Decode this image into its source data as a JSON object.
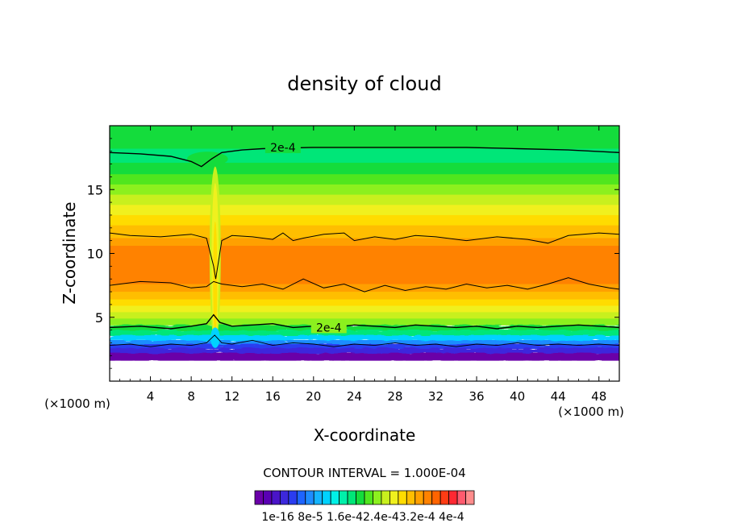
{
  "chart_data": {
    "type": "contour",
    "title": "density of cloud",
    "xlabel": "X-coordinate",
    "ylabel": "Z-coordinate",
    "x_unit_left": "(×1000 m)",
    "x_unit_right": "(×1000 m)",
    "xlim": [
      0,
      50
    ],
    "ylim": [
      0,
      20
    ],
    "xticks": [
      "4",
      "8",
      "12",
      "16",
      "20",
      "24",
      "28",
      "32",
      "36",
      "40",
      "44",
      "48"
    ],
    "xtick_values": [
      4,
      8,
      12,
      16,
      20,
      24,
      28,
      32,
      36,
      40,
      44,
      48
    ],
    "yticks": [
      "5",
      "10",
      "15"
    ],
    "ytick_values": [
      5,
      10,
      15
    ],
    "contour_interval_text": "CONTOUR INTERVAL = 1.000E-04",
    "contour_labels": [
      {
        "text": "2e-4",
        "x": 17,
        "z": 18.3
      },
      {
        "text": "2e-4",
        "x": 21.5,
        "z": 4.2
      }
    ],
    "colorbar": {
      "tick_labels_text": "1e-16 8e-5 1.6e-42.4e-43.2e-4 4e-4",
      "colors": [
        "#6a00a8",
        "#5a00b4",
        "#4a14c8",
        "#3c28dc",
        "#2a3cf0",
        "#1e64ff",
        "#1e8cff",
        "#14b4ff",
        "#00d2ff",
        "#00f0e6",
        "#00f0aa",
        "#00e678",
        "#14dc3c",
        "#50e61e",
        "#8cf01e",
        "#c8f01e",
        "#f0f01e",
        "#ffdc00",
        "#ffbe00",
        "#ffa000",
        "#ff8200",
        "#ff6400",
        "#ff3c14",
        "#ff2832",
        "#ff5a6e",
        "#ff8c8c"
      ]
    },
    "bands": [
      {
        "z0": 19.2,
        "z1": 20,
        "color": "#14dc3c"
      },
      {
        "z0": 18.2,
        "z1": 19.2,
        "color": "#14dc3c"
      },
      {
        "z0": 17.1,
        "z1": 18.2,
        "color": "#00e678"
      },
      {
        "z0": 16.2,
        "z1": 17.1,
        "color": "#14dc3c"
      },
      {
        "z0": 15.4,
        "z1": 16.2,
        "color": "#50e61e"
      },
      {
        "z0": 14.6,
        "z1": 15.4,
        "color": "#8cf01e"
      },
      {
        "z0": 13.8,
        "z1": 14.6,
        "color": "#c8f01e"
      },
      {
        "z0": 13.0,
        "z1": 13.8,
        "color": "#f0f01e"
      },
      {
        "z0": 12.2,
        "z1": 13.0,
        "color": "#ffdc00"
      },
      {
        "z0": 11.2,
        "z1": 12.2,
        "color": "#ffbe00"
      },
      {
        "z0": 10.6,
        "z1": 11.2,
        "color": "#ffa000"
      },
      {
        "z0": 7.6,
        "z1": 10.6,
        "color": "#ff8200"
      },
      {
        "z0": 7.0,
        "z1": 7.6,
        "color": "#ffa000"
      },
      {
        "z0": 6.4,
        "z1": 7.0,
        "color": "#ffbe00"
      },
      {
        "z0": 5.9,
        "z1": 6.4,
        "color": "#ffdc00"
      },
      {
        "z0": 5.4,
        "z1": 5.9,
        "color": "#f0f01e"
      },
      {
        "z0": 4.9,
        "z1": 5.4,
        "color": "#c8f01e"
      },
      {
        "z0": 4.4,
        "z1": 4.9,
        "color": "#8cf01e"
      },
      {
        "z0": 4.0,
        "z1": 4.4,
        "color": "#14dc3c"
      },
      {
        "z0": 3.6,
        "z1": 4.0,
        "color": "#00e678"
      },
      {
        "z0": 3.2,
        "z1": 3.6,
        "color": "#00d2ff"
      },
      {
        "z0": 2.9,
        "z1": 3.2,
        "color": "#1e8cff"
      },
      {
        "z0": 2.6,
        "z1": 2.9,
        "color": "#2a3cf0"
      },
      {
        "z0": 2.2,
        "z1": 2.6,
        "color": "#3c28dc"
      },
      {
        "z0": 1.6,
        "z1": 2.2,
        "color": "#6a00a8"
      },
      {
        "z0": 0,
        "z1": 1.6,
        "color": "#ffffff"
      }
    ],
    "contour_lines": [
      {
        "name": "upper-2e-4",
        "width": 1.4,
        "points": [
          [
            0,
            17.9
          ],
          [
            3,
            17.8
          ],
          [
            6,
            17.6
          ],
          [
            8,
            17.2
          ],
          [
            9,
            16.8
          ],
          [
            10,
            17.4
          ],
          [
            11,
            17.9
          ],
          [
            13,
            18.1
          ],
          [
            15,
            18.2
          ],
          [
            20,
            18.3
          ],
          [
            25,
            18.3
          ],
          [
            30,
            18.3
          ],
          [
            35,
            18.3
          ],
          [
            40,
            18.2
          ],
          [
            45,
            18.1
          ],
          [
            50,
            17.9
          ]
        ]
      },
      {
        "name": "upper-orange-edge",
        "width": 1.0,
        "points": [
          [
            0,
            11.6
          ],
          [
            2,
            11.4
          ],
          [
            5,
            11.3
          ],
          [
            8,
            11.5
          ],
          [
            9.5,
            11.2
          ],
          [
            10.2,
            9
          ],
          [
            10.4,
            8.0
          ],
          [
            10.6,
            9
          ],
          [
            11,
            11
          ],
          [
            12,
            11.4
          ],
          [
            14,
            11.3
          ],
          [
            16,
            11.1
          ],
          [
            17,
            11.6
          ],
          [
            18,
            11.0
          ],
          [
            19,
            11.2
          ],
          [
            21,
            11.5
          ],
          [
            23,
            11.6
          ],
          [
            24,
            11.0
          ],
          [
            26,
            11.3
          ],
          [
            28,
            11.1
          ],
          [
            30,
            11.4
          ],
          [
            32,
            11.3
          ],
          [
            35,
            11.0
          ],
          [
            38,
            11.3
          ],
          [
            41,
            11.1
          ],
          [
            43,
            10.8
          ],
          [
            45,
            11.4
          ],
          [
            48,
            11.6
          ],
          [
            50,
            11.5
          ]
        ]
      },
      {
        "name": "lower-orange-edge",
        "width": 1.0,
        "points": [
          [
            0,
            7.5
          ],
          [
            3,
            7.8
          ],
          [
            6,
            7.7
          ],
          [
            8,
            7.3
          ],
          [
            9.5,
            7.4
          ],
          [
            10.2,
            7.8
          ],
          [
            11,
            7.6
          ],
          [
            13,
            7.4
          ],
          [
            15,
            7.6
          ],
          [
            17,
            7.2
          ],
          [
            19,
            8.0
          ],
          [
            21,
            7.3
          ],
          [
            23,
            7.6
          ],
          [
            25,
            7.0
          ],
          [
            27,
            7.5
          ],
          [
            29,
            7.1
          ],
          [
            31,
            7.4
          ],
          [
            33,
            7.2
          ],
          [
            35,
            7.6
          ],
          [
            37,
            7.3
          ],
          [
            39,
            7.5
          ],
          [
            41,
            7.2
          ],
          [
            43,
            7.6
          ],
          [
            45,
            8.1
          ],
          [
            47,
            7.6
          ],
          [
            49,
            7.3
          ],
          [
            50,
            7.2
          ]
        ]
      },
      {
        "name": "lower-2e-4",
        "width": 1.4,
        "points": [
          [
            0,
            4.2
          ],
          [
            3,
            4.3
          ],
          [
            6,
            4.1
          ],
          [
            8,
            4.3
          ],
          [
            9.5,
            4.5
          ],
          [
            10.2,
            5.2
          ],
          [
            10.8,
            4.6
          ],
          [
            12,
            4.3
          ],
          [
            14,
            4.4
          ],
          [
            16,
            4.5
          ],
          [
            18,
            4.2
          ],
          [
            20,
            4.3
          ],
          [
            22,
            4.2
          ],
          [
            24,
            4.4
          ],
          [
            26,
            4.3
          ],
          [
            28,
            4.2
          ],
          [
            30,
            4.4
          ],
          [
            32,
            4.3
          ],
          [
            34,
            4.2
          ],
          [
            36,
            4.3
          ],
          [
            38,
            4.1
          ],
          [
            40,
            4.3
          ],
          [
            42,
            4.2
          ],
          [
            44,
            4.3
          ],
          [
            46,
            4.4
          ],
          [
            48,
            4.3
          ],
          [
            50,
            4.2
          ]
        ]
      },
      {
        "name": "lower-thin",
        "width": 0.9,
        "points": [
          [
            0,
            2.8
          ],
          [
            2,
            2.9
          ],
          [
            4,
            2.7
          ],
          [
            6,
            2.9
          ],
          [
            8,
            2.8
          ],
          [
            9.5,
            3.0
          ],
          [
            10.3,
            3.6
          ],
          [
            11,
            3.0
          ],
          [
            12,
            2.9
          ],
          [
            14,
            3.2
          ],
          [
            16,
            2.8
          ],
          [
            18,
            3.0
          ],
          [
            20,
            2.9
          ],
          [
            22,
            2.7
          ],
          [
            24,
            2.9
          ],
          [
            26,
            2.8
          ],
          [
            28,
            3.0
          ],
          [
            30,
            2.8
          ],
          [
            32,
            2.9
          ],
          [
            34,
            2.7
          ],
          [
            36,
            2.9
          ],
          [
            38,
            2.8
          ],
          [
            40,
            3.0
          ],
          [
            42,
            2.8
          ],
          [
            44,
            2.9
          ],
          [
            46,
            2.8
          ],
          [
            48,
            2.9
          ],
          [
            50,
            2.8
          ]
        ]
      }
    ]
  }
}
